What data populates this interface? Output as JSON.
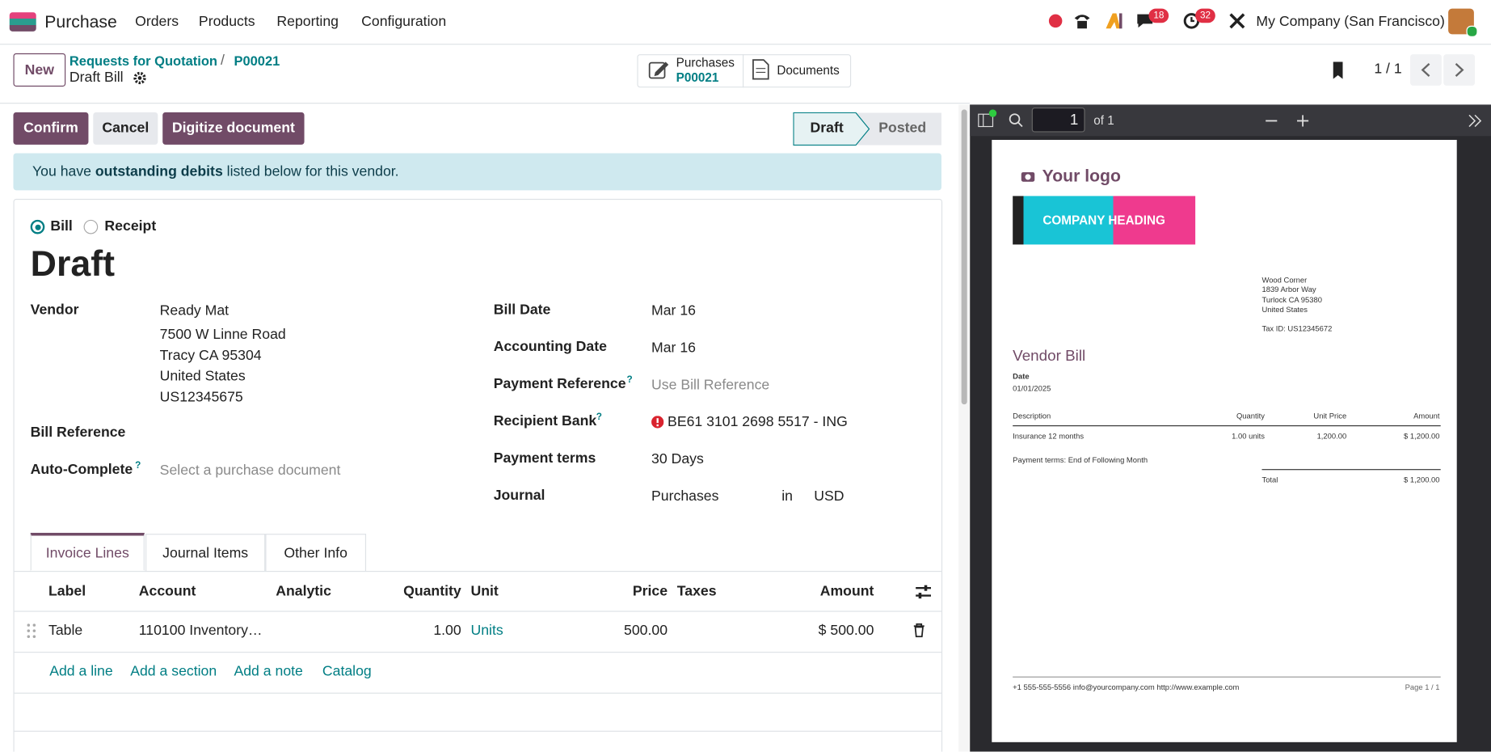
{
  "navbar": {
    "app": "Purchase",
    "menu": [
      "Orders",
      "Products",
      "Reporting",
      "Configuration"
    ],
    "message_count": "18",
    "activity_count": "32",
    "company": "My Company (San Francisco)"
  },
  "control_panel": {
    "new": "New",
    "breadcrumb": [
      "Requests for Quotation",
      "P00021"
    ],
    "separator": "/",
    "current": "Draft Bill",
    "smart_buttons": {
      "purchases_label": "Purchases",
      "purchases_ref": "P00021",
      "documents": "Documents"
    },
    "pager": "1 / 1"
  },
  "form": {
    "buttons": [
      "Confirm",
      "Cancel",
      "Digitize document"
    ],
    "statuses": [
      "Draft",
      "Posted"
    ],
    "alert": {
      "before": "You have",
      "bold": "outstanding debits",
      "after": "listed below for this vendor."
    },
    "type_options": [
      "Bill",
      "Receipt"
    ],
    "title": "Draft",
    "help": "?",
    "vendor": {
      "label": "Vendor",
      "lines": [
        "Ready Mat",
        "7500 W Linne Road",
        "Tracy CA 95304",
        "United States",
        "US12345675"
      ]
    },
    "bill_reference": {
      "label": "Bill Reference"
    },
    "auto_complete": {
      "label": "Auto-Complete",
      "placeholder": "Select a purchase document"
    },
    "bill_date": {
      "label": "Bill Date",
      "value": "Mar 16"
    },
    "accounting_date": {
      "label": "Accounting Date",
      "value": "Mar 16"
    },
    "payment_reference": {
      "label": "Payment Reference",
      "placeholder": "Use Bill Reference"
    },
    "recipient_bank": {
      "label": "Recipient Bank",
      "value": "BE61 3101 2698 5517 - ING"
    },
    "payment_terms": {
      "label": "Payment terms",
      "value": "30 Days"
    },
    "journal": {
      "label": "Journal",
      "value": "Purchases",
      "in": "in",
      "currency": "USD"
    },
    "tabs": [
      "Invoice Lines",
      "Journal Items",
      "Other Info"
    ],
    "table": {
      "headers": [
        "Label",
        "Account",
        "Analytic",
        "Quantity",
        "Unit",
        "Price",
        "Taxes",
        "Amount"
      ],
      "row": {
        "label": "Table",
        "account": "110100 Inventory…",
        "quantity": "1.00",
        "unit": "Units",
        "price": "500.00",
        "amount": "$ 500.00"
      },
      "add_links": [
        "Add a line",
        "Add a section",
        "Add a note",
        "Catalog"
      ]
    }
  },
  "pdf_viewer": {
    "page": "1",
    "of": "of 1",
    "document": {
      "logo": "Your logo",
      "banner": "COMPANY HEADING",
      "address": [
        "Wood Corner",
        "1839 Arbor Way",
        "Turlock CA 95380",
        "United States"
      ],
      "tax_id": "Tax ID: US12345672",
      "title": "Vendor Bill",
      "date_label": "Date",
      "date": "01/01/2025",
      "headers": [
        "Description",
        "Quantity",
        "Unit Price",
        "Amount"
      ],
      "row": [
        "Insurance 12 months",
        "1.00 units",
        "1,200.00",
        "$ 1,200.00"
      ],
      "payment_terms": "Payment terms: End of Following Month",
      "total_label": "Total",
      "total": "$ 1,200.00",
      "footer": "+1 555-555-5556 info@yourcompany.com http://www.example.com",
      "page": "Page 1 / 1"
    }
  }
}
